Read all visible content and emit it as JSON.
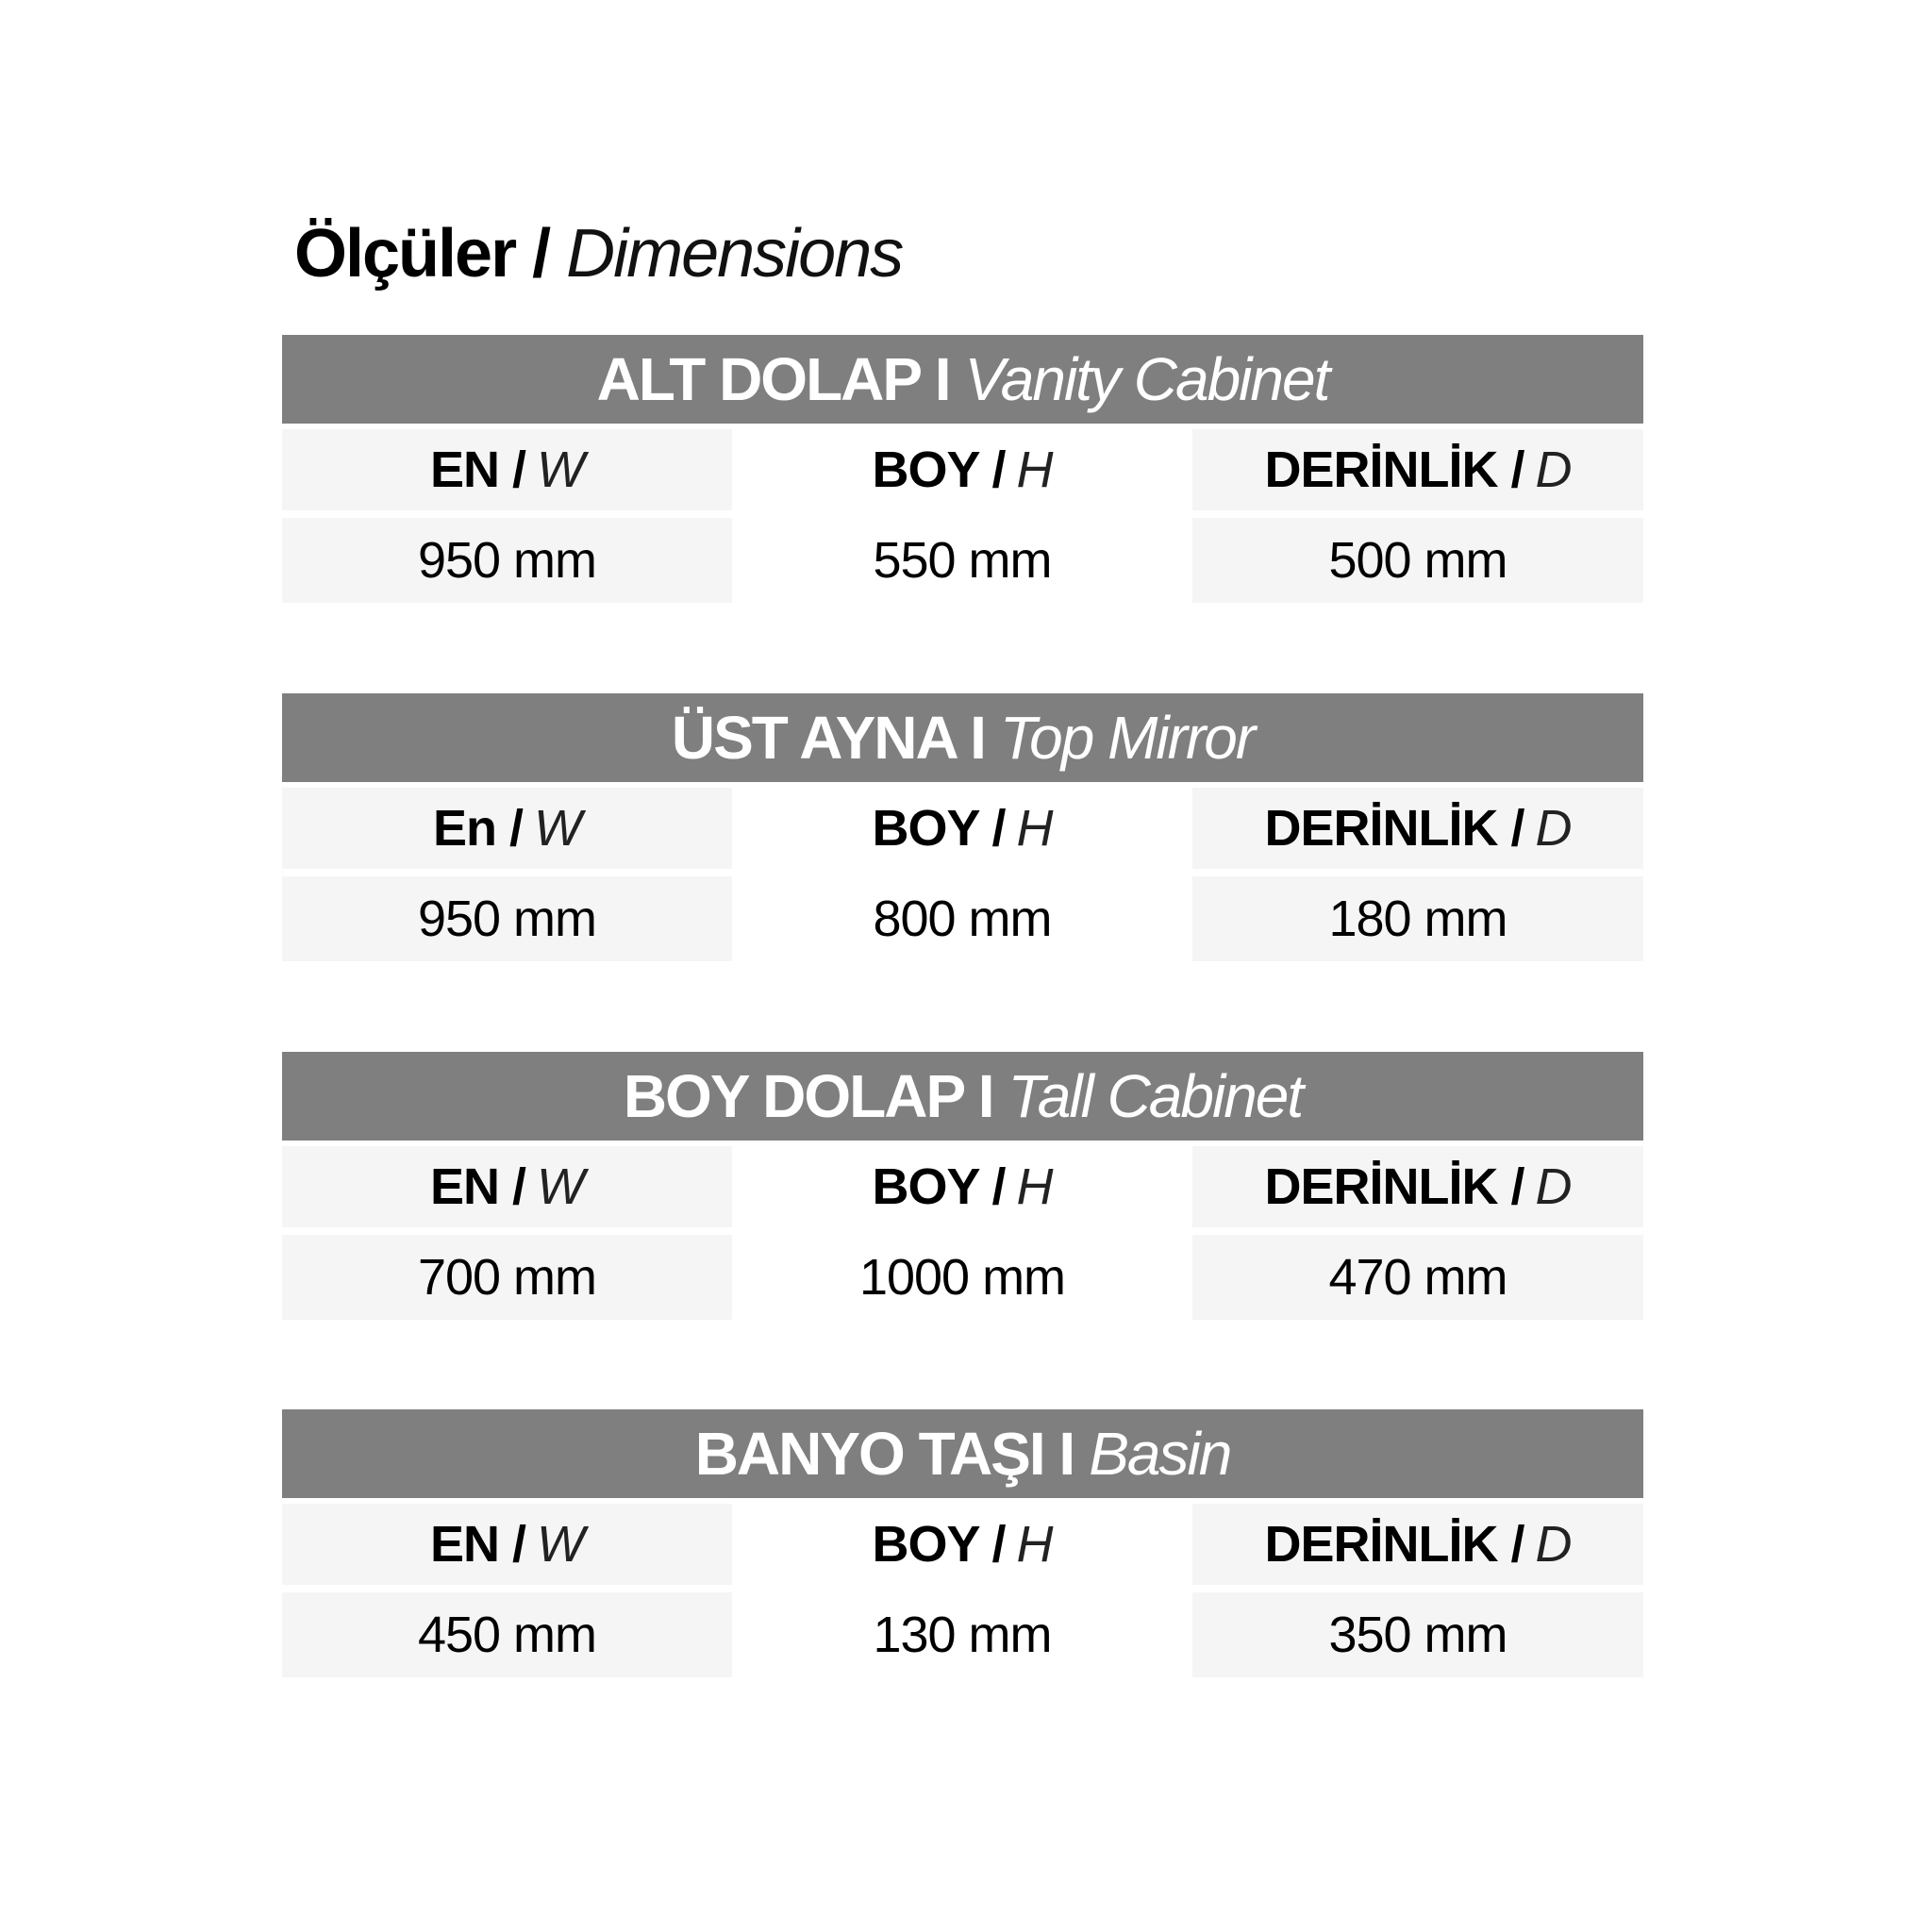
{
  "title": {
    "bold": "Ölçüler /",
    "italic": "Dimensions"
  },
  "colors": {
    "header_bar": "#7f7f7f",
    "cell_bg": "#f5f5f5",
    "text": "#000000"
  },
  "sections": [
    {
      "bold": "ALT DOLAP I",
      "italic": "Vanity Cabinet",
      "columns": [
        {
          "label": "EN  /",
          "axis": "W",
          "value": "950 mm"
        },
        {
          "label": "BOY /",
          "axis": "H",
          "value": "550 mm"
        },
        {
          "label": "DERİNLİK /",
          "axis": "D",
          "value": "500 mm"
        }
      ]
    },
    {
      "bold": "ÜST AYNA I",
      "italic": "Top Mirror",
      "columns": [
        {
          "label": "En /",
          "axis": "W",
          "value": "950 mm"
        },
        {
          "label": "BOY /",
          "axis": "H",
          "value": "800 mm"
        },
        {
          "label": "DERİNLİK /",
          "axis": "D",
          "value": "180 mm"
        }
      ]
    },
    {
      "bold": "BOY DOLAP I",
      "italic": "Tall Cabinet",
      "columns": [
        {
          "label": "EN /",
          "axis": "W",
          "value": "700 mm"
        },
        {
          "label": "BOY /",
          "axis": "H",
          "value": "1000 mm"
        },
        {
          "label": "DERİNLİK /",
          "axis": "D",
          "value": "470 mm"
        }
      ]
    },
    {
      "bold": "BANYO TAŞI I",
      "italic": "Basin",
      "columns": [
        {
          "label": "EN /",
          "axis": "W",
          "value": "450 mm"
        },
        {
          "label": "BOY /",
          "axis": "H",
          "value": "130 mm"
        },
        {
          "label": "DERİNLİK /",
          "axis": "D",
          "value": "350 mm"
        }
      ]
    }
  ]
}
